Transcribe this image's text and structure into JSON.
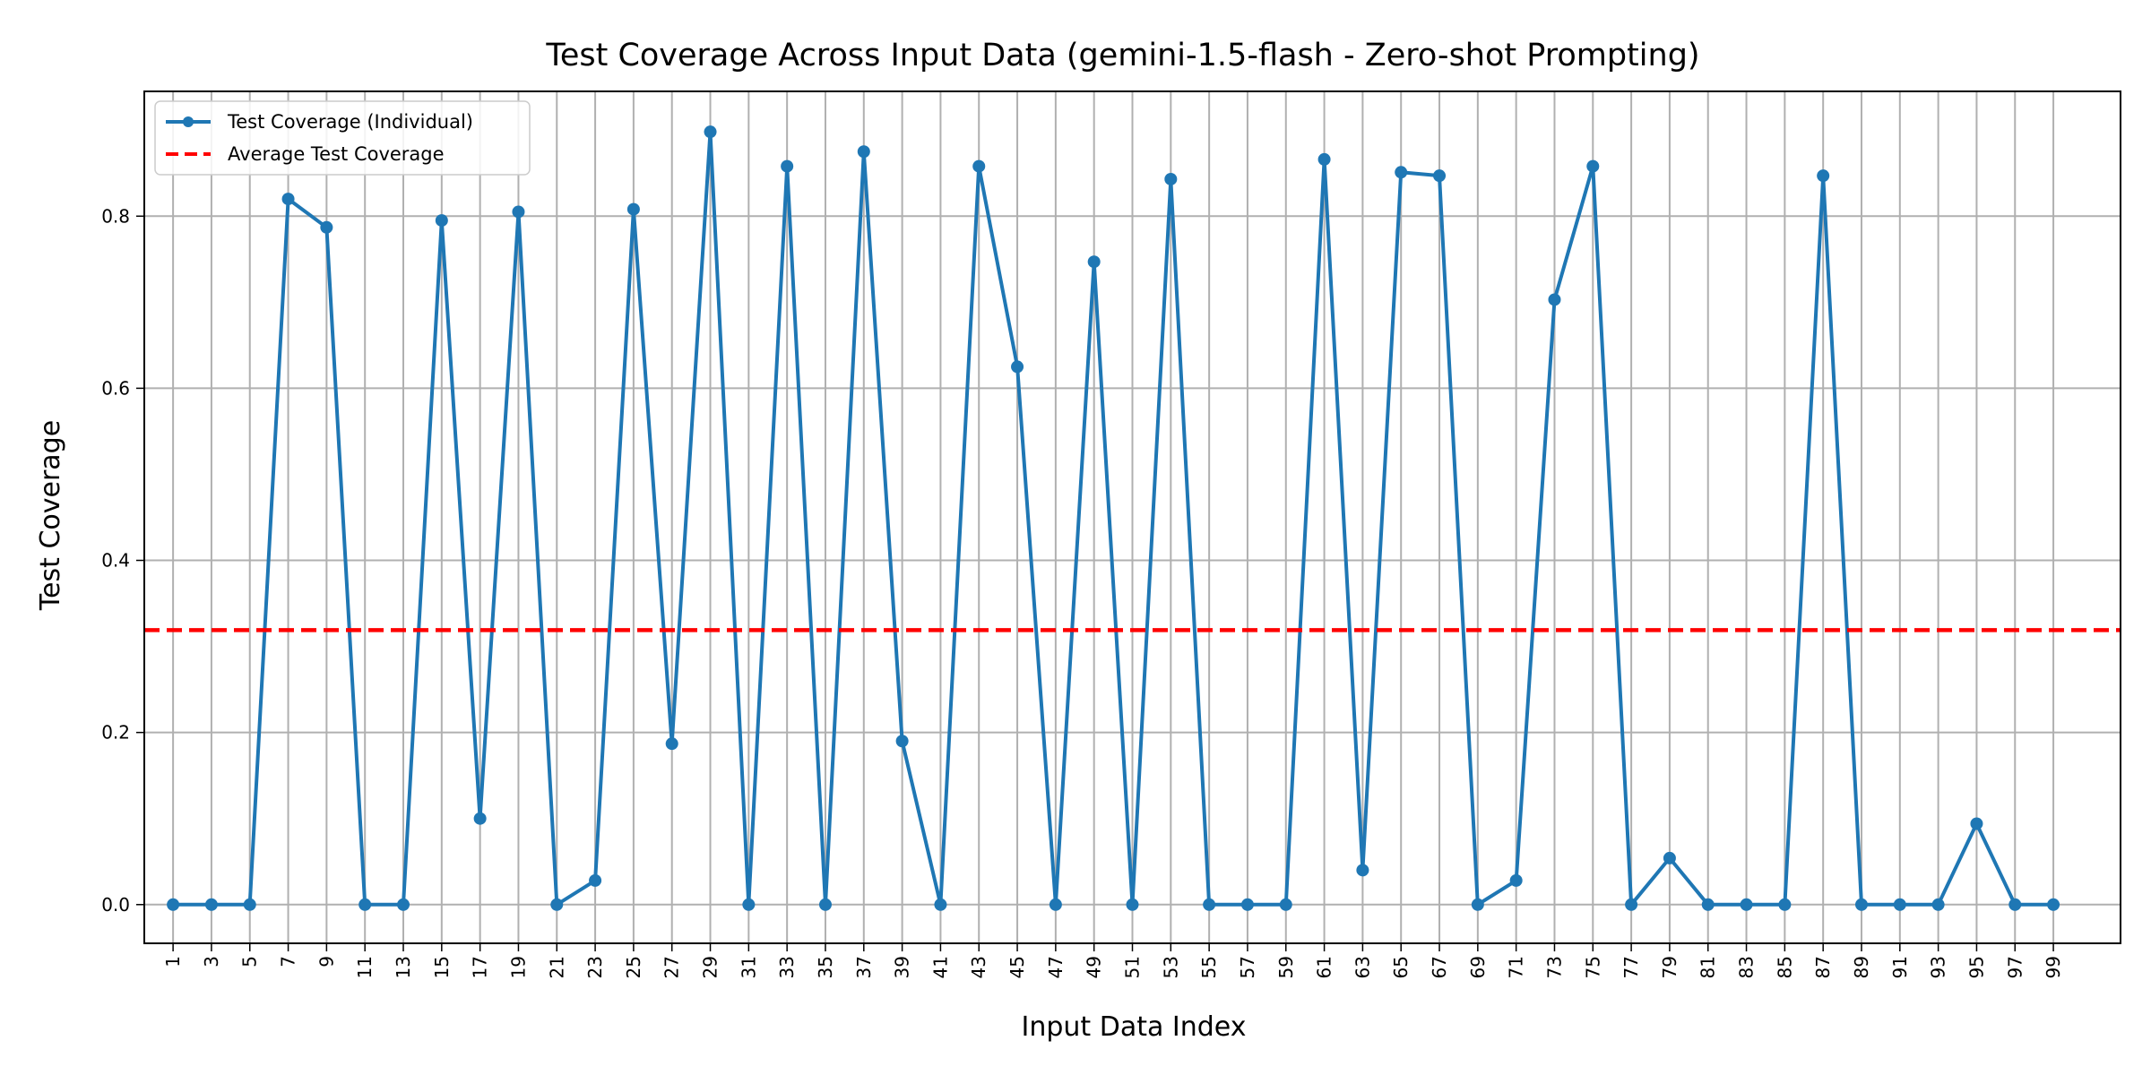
{
  "chart_data": {
    "type": "line",
    "title": "Test Coverage Across Input Data (gemini-1.5-flash - Zero-shot Prompting)",
    "xlabel": "Input Data Index",
    "ylabel": "Test Coverage",
    "xlim": [
      -0.5,
      102.5
    ],
    "ylim": [
      -0.045,
      0.945
    ],
    "grid": true,
    "legend_position": "top-left",
    "x_ticks": [
      1,
      3,
      5,
      7,
      9,
      11,
      13,
      15,
      17,
      19,
      21,
      23,
      25,
      27,
      29,
      31,
      33,
      35,
      37,
      39,
      41,
      43,
      45,
      47,
      49,
      51,
      53,
      55,
      57,
      59,
      61,
      63,
      65,
      67,
      69,
      71,
      73,
      75,
      77,
      79,
      81,
      83,
      85,
      87,
      89,
      91,
      93,
      95,
      97,
      99
    ],
    "y_ticks": [
      0.0,
      0.2,
      0.4,
      0.6,
      0.8
    ],
    "y_tick_labels": [
      "0.0",
      "0.2",
      "0.4",
      "0.6",
      "0.8"
    ],
    "series": [
      {
        "name": "Test Coverage (Individual)",
        "color": "#1f77b4",
        "style": "solid-with-markers",
        "x": [
          1,
          3,
          5,
          7,
          9,
          11,
          13,
          15,
          17,
          19,
          21,
          23,
          25,
          27,
          29,
          31,
          33,
          35,
          37,
          39,
          41,
          43,
          45,
          47,
          49,
          51,
          53,
          55,
          57,
          59,
          61,
          63,
          65,
          67,
          69,
          71,
          73,
          75,
          77,
          79,
          81,
          83,
          85,
          87,
          89,
          91,
          93,
          95,
          97,
          99
        ],
        "values": [
          0.0,
          0.0,
          0.0,
          0.82,
          0.787,
          0.0,
          0.0,
          0.795,
          0.1,
          0.805,
          0.0,
          0.028,
          0.808,
          0.187,
          0.898,
          0.0,
          0.858,
          0.0,
          0.875,
          0.19,
          0.0,
          0.858,
          0.625,
          0.0,
          0.747,
          0.0,
          0.843,
          0.0,
          0.0,
          0.0,
          0.866,
          0.04,
          0.851,
          0.847,
          0.0,
          0.028,
          0.703,
          0.858,
          0.0,
          0.054,
          0.0,
          0.0,
          0.0,
          0.847,
          0.0,
          0.0,
          0.0,
          0.094,
          0.0,
          0.0
        ]
      },
      {
        "name": "Average Test Coverage",
        "color": "#ff0000",
        "style": "dashed",
        "value": 0.319
      }
    ]
  }
}
